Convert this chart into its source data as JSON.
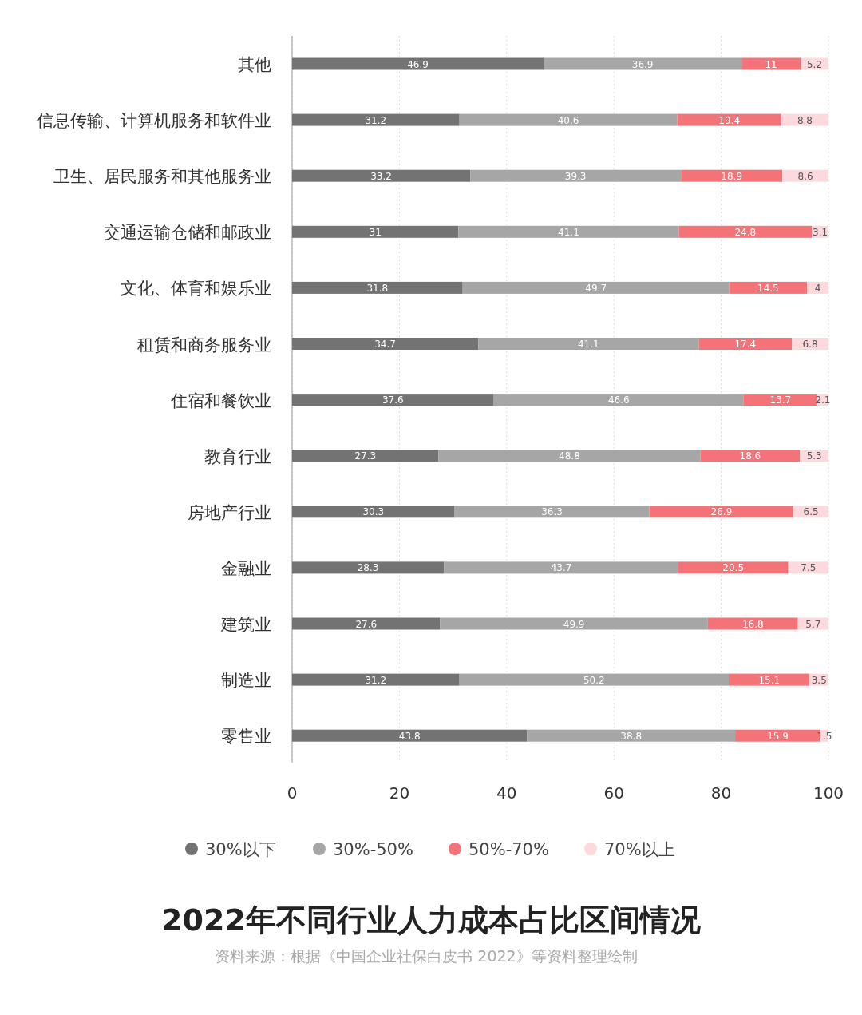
{
  "chart_data": {
    "type": "bar",
    "orientation": "horizontal",
    "stacked": true,
    "title": "2022年不同行业人力成本占比区间情况",
    "annotations": [
      "资料来源：根据《中国企业社保白皮书 2022》等资料整理绘制"
    ],
    "categories": [
      "其他",
      "信息传输、计算机服务和软件业",
      "卫生、居民服务和其他服务业",
      "交通运输仓储和邮政业",
      "文化、体育和娱乐业",
      "租赁和商务服务业",
      "住宿和餐饮业",
      "教育行业",
      "房地产行业",
      "金融业",
      "建筑业",
      "制造业",
      "零售业"
    ],
    "series": [
      {
        "name": "30%以下",
        "color": "#737373",
        "values": [
          46.9,
          31.2,
          33.2,
          31,
          31.8,
          34.7,
          37.6,
          27.3,
          30.3,
          28.3,
          27.6,
          31.2,
          43.8
        ]
      },
      {
        "name": "30%-50%",
        "color": "#a6a6a6",
        "values": [
          36.9,
          40.6,
          39.3,
          41.1,
          49.7,
          41.1,
          46.6,
          48.8,
          36.3,
          43.7,
          49.9,
          50.2,
          38.8
        ]
      },
      {
        "name": "50%-70%",
        "color": "#f47378",
        "values": [
          11,
          19.4,
          18.9,
          24.8,
          14.5,
          17.4,
          13.7,
          18.6,
          26.9,
          20.5,
          16.8,
          15.1,
          15.9
        ]
      },
      {
        "name": "70%以上",
        "color": "#fcd9dc",
        "values": [
          5.2,
          8.8,
          8.6,
          3.1,
          4,
          6.8,
          2.1,
          5.3,
          6.5,
          7.5,
          5.7,
          3.5,
          1.5
        ]
      }
    ],
    "xlim": [
      0,
      100
    ],
    "xticks": [
      0,
      20,
      40,
      60,
      80,
      100
    ],
    "grid": "x",
    "legend": "bottom",
    "marker": "circle",
    "data_labels": true
  }
}
